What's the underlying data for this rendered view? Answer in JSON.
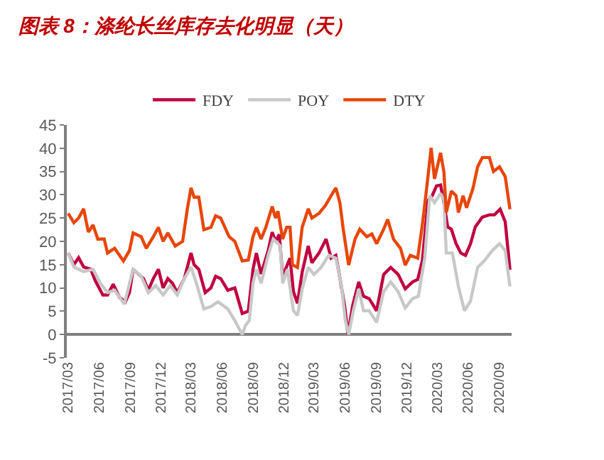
{
  "chart_data": {
    "type": "line",
    "title": "图表 8：涤纶长丝库存去化明显（天）",
    "xlim": [
      "2017-02-25",
      "2020-10-08"
    ],
    "xticks": [
      {
        "value": "2017-03-01",
        "label": "2017/03"
      },
      {
        "value": "2017-06-01",
        "label": "2017/06"
      },
      {
        "value": "2017-09-01",
        "label": "2017/09"
      },
      {
        "value": "2017-12-01",
        "label": "2017/12"
      },
      {
        "value": "2018-03-01",
        "label": "2018/03"
      },
      {
        "value": "2018-06-01",
        "label": "2018/06"
      },
      {
        "value": "2018-09-01",
        "label": "2018/09"
      },
      {
        "value": "2018-12-01",
        "label": "2018/12"
      },
      {
        "value": "2019-03-01",
        "label": "2019/03"
      },
      {
        "value": "2019-06-01",
        "label": "2019/06"
      },
      {
        "value": "2019-09-01",
        "label": "2019/09"
      },
      {
        "value": "2019-12-01",
        "label": "2019/12"
      },
      {
        "value": "2020-03-01",
        "label": "2020/03"
      },
      {
        "value": "2020-06-01",
        "label": "2020/06"
      },
      {
        "value": "2020-09-01",
        "label": "2020/09"
      }
    ],
    "ylim": [
      -5,
      45
    ],
    "yticks": [
      -5,
      0,
      5,
      10,
      15,
      20,
      25,
      30,
      35,
      40,
      45
    ],
    "legend": "top",
    "marker": "none",
    "line_style": "solid",
    "series": [
      {
        "name": "FDY",
        "color": "#c00040",
        "x": [
          "2017-03-01",
          "2017-03-18",
          "2017-04-01",
          "2017-04-16",
          "2017-05-07",
          "2017-05-21",
          "2017-06-12",
          "2017-06-26",
          "2017-07-13",
          "2017-07-31",
          "2017-08-18",
          "2017-08-30",
          "2017-09-10",
          "2017-10-11",
          "2017-10-25",
          "2017-11-09",
          "2017-11-24",
          "2017-12-08",
          "2017-12-22",
          "2018-01-05",
          "2018-01-19",
          "2018-02-09",
          "2018-03-01",
          "2018-03-10",
          "2018-03-24",
          "2018-04-12",
          "2018-04-29",
          "2018-05-13",
          "2018-05-28",
          "2018-06-18",
          "2018-07-09",
          "2018-07-31",
          "2018-08-18",
          "2018-09-01",
          "2018-09-11",
          "2018-09-25",
          "2018-10-16",
          "2018-10-28",
          "2018-11-07",
          "2018-11-18",
          "2018-11-28",
          "2018-12-12",
          "2018-12-20",
          "2018-12-30",
          "2019-01-11",
          "2019-01-25",
          "2019-02-12",
          "2019-02-23",
          "2019-03-16",
          "2019-04-06",
          "2019-04-21",
          "2019-05-05",
          "2019-05-19",
          "2019-05-31",
          "2019-06-10",
          "2019-06-24",
          "2019-07-12",
          "2019-07-26",
          "2019-08-12",
          "2019-09-03",
          "2019-09-24",
          "2019-10-15",
          "2019-11-06",
          "2019-11-27",
          "2019-12-19",
          "2020-01-03",
          "2020-01-17",
          "2020-02-03",
          "2020-02-15",
          "2020-02-28",
          "2020-03-11",
          "2020-03-21",
          "2020-04-01",
          "2020-04-12",
          "2020-04-26",
          "2020-05-10",
          "2020-05-24",
          "2020-06-08",
          "2020-06-22",
          "2020-07-13",
          "2020-08-03",
          "2020-08-18",
          "2020-09-04",
          "2020-09-19",
          "2020-10-03"
        ],
        "values": [
          17.5,
          15,
          16.5,
          14.5,
          14,
          11.5,
          8.5,
          8.5,
          10.8,
          8,
          7,
          9,
          14,
          12,
          9.5,
          12,
          14,
          10,
          12,
          11,
          9,
          12,
          17.5,
          15,
          14,
          9,
          10,
          12.5,
          12,
          9.5,
          10,
          4.5,
          5,
          14,
          17.5,
          13,
          18,
          22,
          20,
          21.5,
          12.5,
          15,
          16.4,
          9.2,
          6.7,
          13.4,
          19,
          15.4,
          17.5,
          20.5,
          16.4,
          17,
          11.3,
          6.2,
          0,
          6.2,
          11.3,
          8.2,
          7.7,
          5.1,
          12.9,
          14.4,
          12.9,
          9.8,
          11.3,
          11.8,
          15.9,
          28.8,
          29.8,
          31.9,
          32.1,
          28.3,
          23.1,
          22.6,
          19.5,
          17.5,
          17,
          19.5,
          23.1,
          25.2,
          25.7,
          25.7,
          26.9,
          24.2,
          13.9
        ]
      },
      {
        "name": "POY",
        "color": "#c8c8c8",
        "x": [
          "2017-03-01",
          "2017-03-18",
          "2017-04-16",
          "2017-05-14",
          "2017-06-05",
          "2017-06-26",
          "2017-07-17",
          "2017-08-15",
          "2017-09-10",
          "2017-10-04",
          "2017-10-25",
          "2017-11-16",
          "2017-12-08",
          "2017-12-29",
          "2018-01-19",
          "2018-02-09",
          "2018-03-01",
          "2018-03-17",
          "2018-04-08",
          "2018-04-29",
          "2018-05-20",
          "2018-06-18",
          "2018-07-09",
          "2018-07-31",
          "2018-08-10",
          "2018-08-21",
          "2018-09-01",
          "2018-09-11",
          "2018-09-25",
          "2018-10-16",
          "2018-10-31",
          "2018-11-21",
          "2018-11-28",
          "2018-12-12",
          "2018-12-30",
          "2019-01-11",
          "2019-01-25",
          "2019-02-12",
          "2019-03-01",
          "2019-03-22",
          "2019-04-14",
          "2019-05-05",
          "2019-05-22",
          "2019-06-02",
          "2019-06-12",
          "2019-06-26",
          "2019-07-12",
          "2019-07-26",
          "2019-08-12",
          "2019-09-03",
          "2019-09-24",
          "2019-10-15",
          "2019-11-06",
          "2019-11-27",
          "2019-12-19",
          "2020-01-05",
          "2020-01-24",
          "2020-02-08",
          "2020-02-22",
          "2020-03-11",
          "2020-03-21",
          "2020-03-28",
          "2020-04-15",
          "2020-05-03",
          "2020-05-21",
          "2020-06-08",
          "2020-06-29",
          "2020-07-20",
          "2020-08-11",
          "2020-09-02",
          "2020-09-19",
          "2020-10-03"
        ],
        "values": [
          17.5,
          14.5,
          13.5,
          14,
          11,
          9,
          9.5,
          6.5,
          14,
          12.5,
          9,
          10.5,
          8.5,
          10.5,
          8.5,
          12,
          14.5,
          11,
          5.5,
          6,
          7,
          5.5,
          3,
          0,
          2,
          3,
          11,
          14,
          11,
          17,
          20.5,
          19,
          11,
          14,
          5.1,
          4.1,
          9.8,
          14.4,
          12.9,
          14.4,
          17,
          16.4,
          10.3,
          3.1,
          0,
          5.1,
          9.8,
          5.1,
          5.1,
          2.6,
          9.2,
          11.3,
          9.2,
          5.7,
          7.7,
          8.2,
          16.4,
          29.8,
          28.3,
          30.3,
          28.8,
          17.5,
          17.5,
          10.3,
          5.1,
          7.2,
          14.4,
          15.9,
          18,
          19.5,
          18,
          10.3
        ]
      },
      {
        "name": "DTY",
        "color": "#e8460a",
        "x": [
          "2017-03-01",
          "2017-03-18",
          "2017-04-01",
          "2017-04-16",
          "2017-04-30",
          "2017-05-14",
          "2017-05-28",
          "2017-06-16",
          "2017-06-26",
          "2017-07-17",
          "2017-08-12",
          "2017-08-30",
          "2017-09-10",
          "2017-10-04",
          "2017-10-19",
          "2017-11-09",
          "2017-11-24",
          "2017-12-08",
          "2017-12-22",
          "2018-01-13",
          "2018-02-04",
          "2018-02-18",
          "2018-03-01",
          "2018-03-10",
          "2018-03-24",
          "2018-04-08",
          "2018-04-29",
          "2018-05-13",
          "2018-05-28",
          "2018-06-22",
          "2018-07-09",
          "2018-07-31",
          "2018-08-18",
          "2018-09-01",
          "2018-09-11",
          "2018-09-25",
          "2018-10-09",
          "2018-10-28",
          "2018-11-07",
          "2018-11-14",
          "2018-11-28",
          "2018-12-10",
          "2018-12-20",
          "2018-12-27",
          "2019-01-11",
          "2019-01-25",
          "2019-02-12",
          "2019-02-23",
          "2019-03-16",
          "2019-04-04",
          "2019-04-21",
          "2019-05-05",
          "2019-05-17",
          "2019-05-27",
          "2019-06-12",
          "2019-07-01",
          "2019-07-15",
          "2019-08-05",
          "2019-08-20",
          "2019-09-03",
          "2019-09-24",
          "2019-10-06",
          "2019-10-23",
          "2019-11-13",
          "2019-11-27",
          "2019-12-12",
          "2020-01-03",
          "2020-01-17",
          "2020-02-01",
          "2020-02-12",
          "2020-02-22",
          "2020-03-11",
          "2020-03-21",
          "2020-03-28",
          "2020-04-12",
          "2020-04-26",
          "2020-05-03",
          "2020-05-17",
          "2020-05-27",
          "2020-06-15",
          "2020-06-29",
          "2020-07-13",
          "2020-08-03",
          "2020-08-15",
          "2020-09-02",
          "2020-09-19",
          "2020-10-03"
        ],
        "values": [
          26,
          24,
          25,
          27,
          22,
          23.5,
          20.5,
          20.5,
          17.5,
          18.5,
          15.8,
          18,
          21.8,
          21,
          18.5,
          21,
          23,
          20,
          21.8,
          19,
          20,
          27,
          31.5,
          29.5,
          29.5,
          22.5,
          23,
          25.5,
          25,
          21,
          20,
          15.8,
          16,
          21,
          23,
          20.5,
          23,
          27.5,
          25,
          26.5,
          20.5,
          23,
          23,
          15,
          14.4,
          23,
          27,
          25,
          26,
          27.7,
          29.8,
          31.5,
          28.3,
          22.6,
          14.9,
          20.5,
          22.6,
          21,
          21.6,
          19.5,
          22.6,
          24.7,
          20.5,
          18.5,
          14.9,
          17,
          16.4,
          23.6,
          32.9,
          40.1,
          33.4,
          39,
          34.9,
          26.2,
          30.8,
          29.8,
          26.2,
          29.8,
          27.2,
          31.3,
          36,
          38,
          38,
          35,
          36,
          33.9,
          26.9
        ]
      }
    ]
  }
}
